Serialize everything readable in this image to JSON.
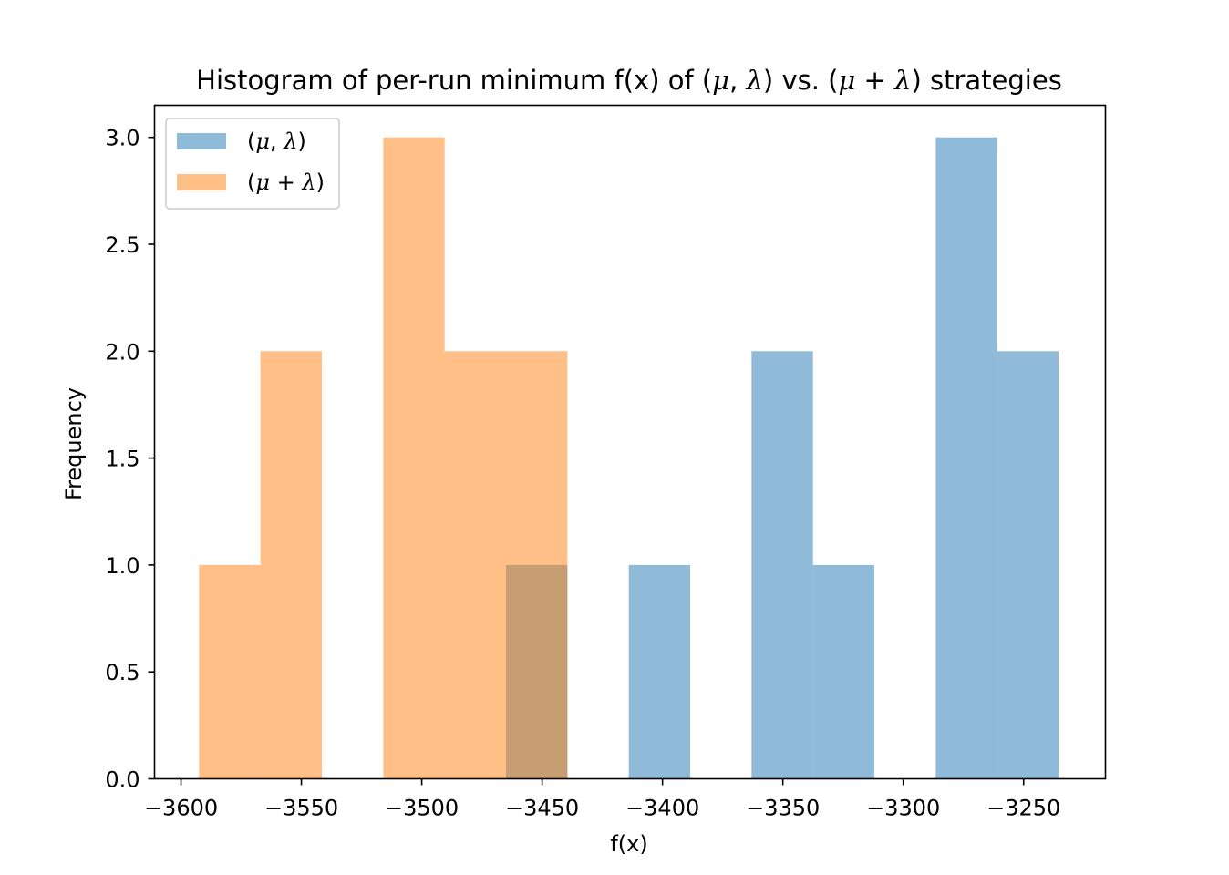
{
  "chart_data": {
    "type": "histogram",
    "title": "Histogram of per-run minimum f(x) of (μ,λ) vs. (μ+λ) strategies",
    "xlabel": "f(x)",
    "ylabel": "Frequency",
    "xlim": [
      -3611,
      -3216
    ],
    "ylim": [
      0,
      3.15
    ],
    "xticks": [
      -3600,
      -3550,
      -3500,
      -3450,
      -3400,
      -3350,
      -3300,
      -3250
    ],
    "xtick_labels": [
      "−3600",
      "−3550",
      "−3500",
      "−3450",
      "−3400",
      "−3350",
      "−3300",
      "−3250"
    ],
    "yticks": [
      0.0,
      0.5,
      1.0,
      1.5,
      2.0,
      2.5,
      3.0
    ],
    "ytick_labels": [
      "0.0",
      "0.5",
      "1.0",
      "1.5",
      "2.0",
      "2.5",
      "3.0"
    ],
    "legend_position": "upper-left",
    "series": [
      {
        "name": "(μ,λ)",
        "color": "#1f77b4",
        "alpha": 0.5,
        "bins": [
          {
            "x0": -3465,
            "x1": -3439.5,
            "count": 1
          },
          {
            "x0": -3439.5,
            "x1": -3414,
            "count": 0
          },
          {
            "x0": -3414,
            "x1": -3388.5,
            "count": 1
          },
          {
            "x0": -3388.5,
            "x1": -3363,
            "count": 0
          },
          {
            "x0": -3363,
            "x1": -3337.5,
            "count": 2
          },
          {
            "x0": -3337.5,
            "x1": -3312,
            "count": 1
          },
          {
            "x0": -3312,
            "x1": -3286.5,
            "count": 0
          },
          {
            "x0": -3286.5,
            "x1": -3261,
            "count": 3
          },
          {
            "x0": -3261,
            "x1": -3235.5,
            "count": 2
          }
        ]
      },
      {
        "name": "(μ+λ)",
        "color": "#ff7f0e",
        "alpha": 0.5,
        "bins": [
          {
            "x0": -3592.5,
            "x1": -3567,
            "count": 1
          },
          {
            "x0": -3567,
            "x1": -3541.5,
            "count": 2
          },
          {
            "x0": -3541.5,
            "x1": -3516,
            "count": 0
          },
          {
            "x0": -3516,
            "x1": -3490.5,
            "count": 3
          },
          {
            "x0": -3490.5,
            "x1": -3465,
            "count": 2
          },
          {
            "x0": -3465,
            "x1": -3439.5,
            "count": 2
          }
        ]
      }
    ]
  }
}
